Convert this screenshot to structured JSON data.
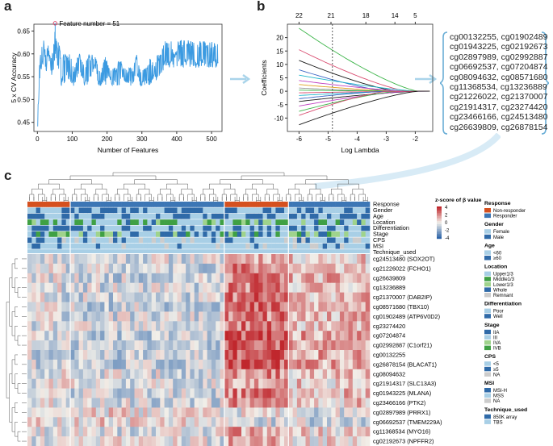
{
  "panels": {
    "a": "a",
    "b": "b",
    "c": "c"
  },
  "colors": {
    "accuracy_line": "#3b9ae1",
    "arrow": "#a9d4ea",
    "brace": "#6aaed6",
    "heat_high": "#c0272d",
    "heat_mid": "#f2efe9",
    "heat_low": "#2e65a9",
    "annotation_dot": "#d94b6f"
  },
  "chart_data": [
    {
      "id": "a",
      "type": "line",
      "title": "",
      "xlabel": "Number of Features",
      "ylabel": "5 x CV Accuracy",
      "xlim": [
        -10,
        530
      ],
      "ylim": [
        0.43,
        0.665
      ],
      "xticks": [
        0,
        100,
        200,
        300,
        400,
        500
      ],
      "yticks": [
        0.45,
        0.5,
        0.55,
        0.6,
        0.65
      ],
      "annotation": {
        "text": "Feature number = 51",
        "x": 51,
        "y": 0.667
      },
      "segments": [
        {
          "x": [
            1,
            4,
            8,
            15,
            20,
            25,
            30,
            36,
            42,
            48,
            51,
            55,
            60,
            68,
            76,
            85,
            95,
            105,
            115,
            125,
            135,
            145,
            155,
            165,
            175,
            185,
            195,
            205,
            215,
            225,
            235,
            245,
            255,
            265,
            275,
            285,
            295,
            305,
            315,
            325,
            335,
            345,
            355,
            365,
            375,
            385,
            395,
            405,
            415,
            425,
            435,
            445,
            455,
            465,
            475,
            485,
            495,
            505,
            515,
            520
          ],
          "lo": [
            0.43,
            0.5,
            0.55,
            0.57,
            0.6,
            0.55,
            0.6,
            0.57,
            0.55,
            0.57,
            0.6,
            0.57,
            0.55,
            0.53,
            0.53,
            0.55,
            0.53,
            0.53,
            0.55,
            0.55,
            0.53,
            0.53,
            0.55,
            0.57,
            0.53,
            0.53,
            0.53,
            0.55,
            0.53,
            0.53,
            0.53,
            0.55,
            0.53,
            0.53,
            0.53,
            0.55,
            0.53,
            0.53,
            0.53,
            0.53,
            0.55,
            0.53,
            0.55,
            0.57,
            0.57,
            0.57,
            0.57,
            0.57,
            0.57,
            0.57,
            0.57,
            0.57,
            0.57,
            0.57,
            0.57,
            0.57,
            0.57,
            0.57,
            0.57,
            0.57
          ],
          "hi": [
            0.47,
            0.57,
            0.6,
            0.63,
            0.63,
            0.6,
            0.63,
            0.6,
            0.6,
            0.63,
            0.667,
            0.63,
            0.63,
            0.6,
            0.6,
            0.6,
            0.6,
            0.57,
            0.6,
            0.6,
            0.57,
            0.6,
            0.6,
            0.6,
            0.57,
            0.57,
            0.6,
            0.57,
            0.57,
            0.57,
            0.6,
            0.57,
            0.57,
            0.57,
            0.57,
            0.6,
            0.57,
            0.57,
            0.57,
            0.6,
            0.57,
            0.6,
            0.6,
            0.63,
            0.63,
            0.63,
            0.6,
            0.63,
            0.63,
            0.63,
            0.63,
            0.63,
            0.63,
            0.63,
            0.63,
            0.63,
            0.63,
            0.63,
            0.63,
            0.63
          ]
        }
      ]
    },
    {
      "id": "b",
      "type": "line",
      "title": "",
      "xlabel": "Log Lambda",
      "ylabel": "Coefficients",
      "xlim": [
        -6.4,
        -1.4
      ],
      "ylim": [
        -15,
        25
      ],
      "xticks": [
        -6,
        -5,
        -4,
        -3,
        -2
      ],
      "yticks": [
        -10,
        -5,
        0,
        5,
        10,
        15,
        20
      ],
      "top_axis_values": [
        -6,
        -4.9,
        -3.7,
        -2.7,
        -2
      ],
      "top_axis_labels": [
        "22",
        "21",
        "18",
        "14",
        "5"
      ],
      "vline_x": -4.85,
      "series": [
        {
          "name": "c1",
          "color": "#3db54a",
          "start": 23.5
        },
        {
          "name": "c2",
          "color": "#d94b6f",
          "start": 15.5
        },
        {
          "name": "c3",
          "color": "#1a1a1a",
          "start": 11.5
        },
        {
          "name": "c4",
          "color": "#3a66c5",
          "start": 8.0
        },
        {
          "name": "c5",
          "color": "#20b6cc",
          "start": 6.0
        },
        {
          "name": "c6",
          "color": "#c040c0",
          "start": 4.0
        },
        {
          "name": "c7",
          "color": "#e0a020",
          "start": 2.5
        },
        {
          "name": "c8",
          "color": "#999999",
          "start": 1.2
        },
        {
          "name": "c9",
          "color": "#3db54a",
          "start": 0.4
        },
        {
          "name": "c10",
          "color": "#d94b6f",
          "start": -0.6
        },
        {
          "name": "c11",
          "color": "#20b6cc",
          "start": -1.6
        },
        {
          "name": "c12",
          "color": "#3a66c5",
          "start": -2.8
        },
        {
          "name": "c13",
          "color": "#1a1a1a",
          "start": -3.8
        },
        {
          "name": "c14",
          "color": "#c040c0",
          "start": -5.5
        },
        {
          "name": "c15",
          "color": "#3db54a",
          "start": -7.5
        },
        {
          "name": "c16",
          "color": "#d94b6f",
          "start": -9.0
        },
        {
          "name": "c17",
          "color": "#1a1a1a",
          "start": -12.5
        }
      ]
    },
    {
      "id": "c",
      "type": "heatmap",
      "title": "",
      "value_label": "z-score of β value",
      "color_scale": {
        "ticks": [
          4,
          2,
          0,
          -2,
          -4
        ]
      },
      "n_samples": 80,
      "group_breaks": [
        10,
        46,
        61
      ],
      "response_row": [
        "Non-responder",
        "Responder",
        "Non-responder",
        "Responder"
      ],
      "annotation_rows": [
        "Response",
        "Gender",
        "Age",
        "Location",
        "Differentiation",
        "Stage",
        "CPS",
        "MSI",
        "Technique_used"
      ],
      "features": [
        "cg24513480 (SOX2OT)",
        "cg21226022 (FCHO1)",
        "cg26639809",
        "cg13236889",
        "cg21370007 (DAB2IP)",
        "cg08571680 (TBX10)",
        "cg01902489 (ATP6V0D2)",
        "cg23274420",
        "cg07204874",
        "cg02992887 (C1orf21)",
        "cg00132255",
        "cg26878154 (BLACAT1)",
        "cg08094632",
        "cg21914317 (SLC13A3)",
        "cg01943225 (MLANA)",
        "cg23466166 (PTK2)",
        "cg02897989 (PRRX1)",
        "cg06692537 (TMEM229A)",
        "cg11368534 (MYO16)",
        "cg02192673 (NPFFR2)"
      ],
      "feature_trend": [
        0.4,
        0.6,
        0.7,
        0.6,
        0.7,
        0.7,
        0.6,
        0.6,
        0.9,
        0.9,
        0.9,
        0.9,
        0.5,
        0.4,
        0.6,
        0.5,
        -0.3,
        -0.4,
        0.3,
        0.2
      ]
    }
  ],
  "selected_cpgs": [
    "cg00132255, cg01902489",
    "cg01943225, cg02192673",
    "cg02897989, cg02992887",
    "cg06692537, cg07204874",
    "cg08094632, cg08571680",
    "cg11368534, cg13236889",
    "cg21226022, cg21370007",
    "cg21914317, cg23274420",
    "cg23466166, cg24513480",
    "cg26639809, cg26878154"
  ],
  "legend": [
    {
      "title": "Response",
      "items": [
        {
          "label": "Non-responder",
          "color": "#d5501f"
        },
        {
          "label": "Responder",
          "color": "#3c76b5"
        }
      ]
    },
    {
      "title": "Gender",
      "items": [
        {
          "label": "Female",
          "color": "#a8cfe6"
        },
        {
          "label": "Male",
          "color": "#2f6aa8"
        }
      ]
    },
    {
      "title": "Age",
      "items": [
        {
          "label": "<60",
          "color": "#a8cfe6"
        },
        {
          "label": "≥60",
          "color": "#2f6aa8"
        }
      ]
    },
    {
      "title": "Location",
      "items": [
        {
          "label": "Upper1/3",
          "color": "#a8cfe6"
        },
        {
          "label": "Middle1/3",
          "color": "#3fa044"
        },
        {
          "label": "Lower1/3",
          "color": "#9fd38c"
        },
        {
          "label": "Whole",
          "color": "#2f6aa8"
        },
        {
          "label": "Remnant",
          "color": "#cccccc"
        }
      ]
    },
    {
      "title": "Differentiation",
      "items": [
        {
          "label": "Poor",
          "color": "#a8cfe6"
        },
        {
          "label": "Well",
          "color": "#2f6aa8"
        }
      ]
    },
    {
      "title": "Stage",
      "items": [
        {
          "label": "IIA",
          "color": "#2f6aa8"
        },
        {
          "label": "III",
          "color": "#a8cfe6"
        },
        {
          "label": "IVA",
          "color": "#9fd38c"
        },
        {
          "label": "IVB",
          "color": "#3fa044"
        }
      ]
    },
    {
      "title": "CPS",
      "items": [
        {
          "label": "<5",
          "color": "#a8cfe6"
        },
        {
          "label": "≥5",
          "color": "#2f6aa8"
        },
        {
          "label": "NA",
          "color": "#cccccc"
        }
      ]
    },
    {
      "title": "MSI",
      "items": [
        {
          "label": "MSI-H",
          "color": "#2f6aa8"
        },
        {
          "label": "MSS",
          "color": "#a8cfe6"
        },
        {
          "label": "NA",
          "color": "#cccccc"
        }
      ]
    },
    {
      "title": "Technique_used",
      "items": [
        {
          "label": "850K array",
          "color": "#2f6aa8"
        },
        {
          "label": "TBS",
          "color": "#a8cfe6"
        }
      ]
    }
  ]
}
